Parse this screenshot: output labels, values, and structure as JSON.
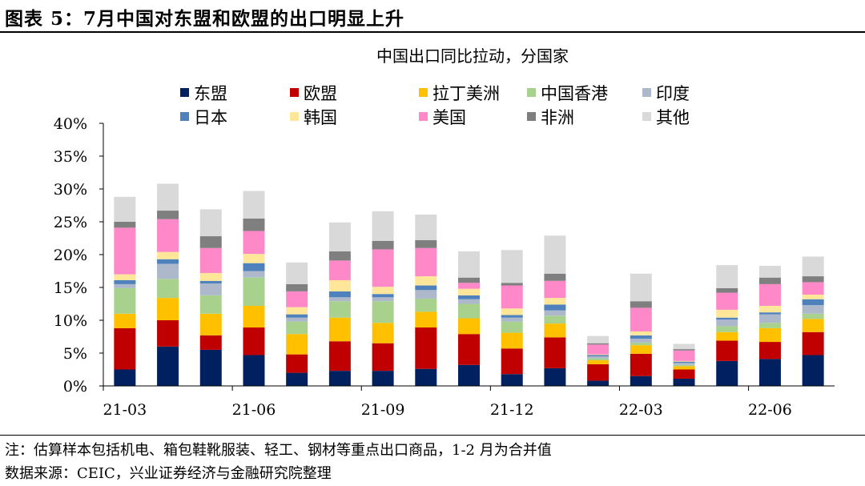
{
  "figure_title": "图表 5：7月中国对东盟和欧盟的出口明显上升",
  "note": "注：估算样本包括机电、箱包鞋靴服装、轻工、钢材等重点出口商品，1-2 月为合并值",
  "source": "数据来源：CEIC，兴业证券经济与金融研究院整理",
  "chart_data": {
    "type": "stacked-bar",
    "title": "中国出口同比拉动，分国家",
    "xlabel": "",
    "ylabel": "",
    "ylim": [
      0,
      40
    ],
    "yticks": [
      "0%",
      "5%",
      "10%",
      "15%",
      "20%",
      "25%",
      "30%",
      "35%",
      "40%"
    ],
    "categories": [
      "21-03",
      "21-04",
      "21-05",
      "21-06",
      "21-07",
      "21-08",
      "21-09",
      "21-10",
      "21-11",
      "21-12",
      "22-01",
      "22-02",
      "22-03",
      "22-04",
      "22-05",
      "22-06",
      "22-07"
    ],
    "xtick_labels": [
      "21-03",
      "21-06",
      "21-09",
      "21-12",
      "22-03",
      "22-06"
    ],
    "legend_position": "top",
    "series": [
      {
        "name": "东盟",
        "color": "#002060",
        "values": [
          2.5,
          6.0,
          5.5,
          4.7,
          2.0,
          2.3,
          2.3,
          2.6,
          3.2,
          1.8,
          2.7,
          0.8,
          1.5,
          1.1,
          3.8,
          4.1,
          4.7
        ]
      },
      {
        "name": "欧盟",
        "color": "#C00000",
        "values": [
          6.3,
          4.0,
          2.2,
          4.2,
          2.8,
          4.5,
          4.2,
          6.3,
          4.7,
          3.9,
          4.7,
          2.5,
          3.4,
          1.4,
          3.1,
          2.6,
          3.5
        ]
      },
      {
        "name": "拉丁美洲",
        "color": "#FFC000",
        "values": [
          2.2,
          3.4,
          3.3,
          3.3,
          3.1,
          3.6,
          3.1,
          2.4,
          2.4,
          2.4,
          2.1,
          0.6,
          1.3,
          0.5,
          1.3,
          2.1,
          2.0
        ]
      },
      {
        "name": "中国香港",
        "color": "#A9D18E",
        "values": [
          3.9,
          2.9,
          2.8,
          4.3,
          1.9,
          2.5,
          3.3,
          2.0,
          2.2,
          1.7,
          1.2,
          0.3,
          0.4,
          0.2,
          0.9,
          0.8,
          0.8
        ]
      },
      {
        "name": "印度",
        "color": "#ADB9CA",
        "values": [
          0.6,
          2.3,
          1.8,
          1.0,
          0.6,
          0.6,
          0.6,
          1.3,
          0.7,
          0.6,
          0.8,
          0.3,
          0.6,
          0.3,
          1.0,
          1.3,
          1.3
        ]
      },
      {
        "name": "日本",
        "color": "#4F81BD",
        "values": [
          0.6,
          0.7,
          0.4,
          1.2,
          0.5,
          0.9,
          0.5,
          0.7,
          0.6,
          0.4,
          0.9,
          0.2,
          0.5,
          0.2,
          0.3,
          0.3,
          0.9
        ]
      },
      {
        "name": "韩国",
        "color": "#FFE699",
        "values": [
          0.9,
          1.1,
          1.2,
          1.4,
          1.1,
          1.7,
          1.1,
          1.4,
          1.0,
          1.0,
          1.0,
          0.1,
          0.6,
          0.1,
          1.2,
          1.0,
          0.7
        ]
      },
      {
        "name": "美国",
        "color": "#FF88C8",
        "values": [
          7.1,
          5.0,
          3.8,
          3.5,
          2.4,
          3.0,
          5.7,
          4.3,
          0.9,
          3.5,
          2.6,
          1.5,
          3.6,
          1.6,
          2.6,
          3.3,
          1.9
        ]
      },
      {
        "name": "非洲",
        "color": "#7F7F7F",
        "values": [
          0.9,
          1.3,
          1.8,
          1.9,
          1.1,
          1.4,
          1.3,
          1.2,
          0.8,
          0.4,
          1.1,
          0.2,
          1.0,
          0.2,
          0.7,
          1.0,
          0.9
        ]
      },
      {
        "name": "其他",
        "color": "#D9D9D9",
        "values": [
          3.8,
          4.1,
          4.1,
          4.2,
          3.3,
          4.4,
          4.5,
          3.9,
          4.0,
          5.0,
          5.8,
          1.1,
          4.2,
          0.8,
          3.5,
          1.8,
          3.0
        ]
      }
    ]
  }
}
